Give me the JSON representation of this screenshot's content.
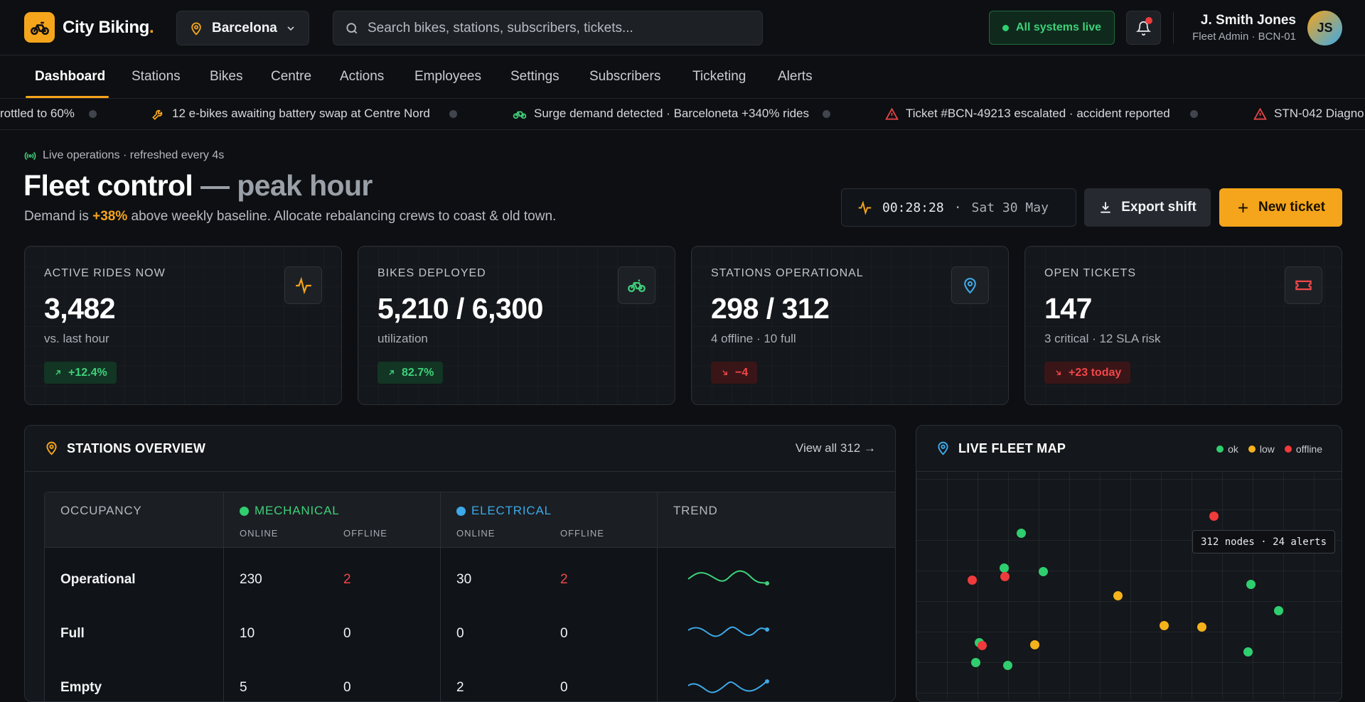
{
  "app": {
    "logo_text": "City Biking",
    "logo_dot": ".",
    "city": "Barcelona",
    "search_placeholder": "Search bikes, stations, subscribers, tickets...",
    "system_status": "All systems live",
    "user": {
      "name": "J. Smith Jones",
      "role": "Fleet Admin · BCN-01",
      "initials": "JS"
    }
  },
  "nav": {
    "tabs": [
      "Dashboard",
      "Stations",
      "Bikes",
      "Centre",
      "Actions",
      "Employees",
      "Settings",
      "Subscribers",
      "Ticketing",
      "Alerts"
    ],
    "active": "Dashboard"
  },
  "ticker": [
    {
      "icon": "none",
      "text": "rottled to 60%"
    },
    {
      "icon": "wrench-icon",
      "text": "12 e-bikes awaiting battery swap at Centre Nord"
    },
    {
      "icon": "bike-icon",
      "text": "Surge demand detected · Barceloneta +340% rides"
    },
    {
      "icon": "warning-icon",
      "text": "Ticket #BCN-49213 escalated · accident reported"
    },
    {
      "icon": "warning-icon",
      "text": "STN-042 Diagno"
    }
  ],
  "header": {
    "live_label": "Live operations · refreshed every 4s",
    "title": "Fleet control",
    "title_muted": "— peak hour",
    "subtitle_pre": "Demand is ",
    "subtitle_highlight": "+38%",
    "subtitle_post": " above weekly baseline. Allocate rebalancing crews to coast & old town.",
    "clock_time": "00:28:28",
    "clock_sep": "·",
    "clock_date": "Sat 30 May",
    "export_label": "Export shift",
    "new_ticket_label": "New ticket"
  },
  "kpis": [
    {
      "label": "ACTIVE RIDES NOW",
      "value": "3,482",
      "sub": "vs. last hour",
      "chip": "+12.4%",
      "trend": "up",
      "icon": "pulse-icon",
      "color": "#f5a51b"
    },
    {
      "label": "BIKES DEPLOYED",
      "value": "5,210 / 6,300",
      "sub": "utilization",
      "chip": "82.7%",
      "trend": "up",
      "icon": "bike-icon",
      "color": "#3ed17a"
    },
    {
      "label": "STATIONS OPERATIONAL",
      "value": "298 / 312",
      "sub": "4 offline · 10 full",
      "chip": "−4",
      "trend": "down",
      "icon": "map-pin-icon",
      "color": "#3da9e8"
    },
    {
      "label": "OPEN TICKETS",
      "value": "147",
      "sub": "3 critical · 12 SLA risk",
      "chip": "+23 today",
      "trend": "down",
      "icon": "ticket-icon",
      "color": "#f0474a"
    }
  ],
  "stations": {
    "title": "STATIONS OVERVIEW",
    "view_all": "View all 312 →",
    "columns": {
      "occupancy": "OCCUPANCY",
      "mechanical": "MECHANICAL",
      "electrical": "ELECTRICAL",
      "trend": "TREND",
      "online": "ONLINE",
      "offline": "OFFLINE"
    },
    "rows": [
      {
        "label": "Operational",
        "mech_online": "230",
        "mech_offline": "2",
        "elec_online": "30",
        "elec_offline": "2",
        "trend_color": "#3ed17a"
      },
      {
        "label": "Full",
        "mech_online": "10",
        "mech_offline": "0",
        "elec_online": "0",
        "elec_offline": "0",
        "trend_color": "#3da9e8"
      },
      {
        "label": "Empty",
        "mech_online": "5",
        "mech_offline": "0",
        "elec_online": "2",
        "elec_offline": "0",
        "trend_color": "#3da9e8"
      }
    ]
  },
  "map": {
    "title": "LIVE FLEET MAP",
    "legend": [
      {
        "label": "ok",
        "color": "#2fce6f"
      },
      {
        "label": "low",
        "color": "#f5b21b"
      },
      {
        "label": "offline",
        "color": "#ef3b3b"
      }
    ],
    "tooltip": "312 nodes · 24 alerts"
  }
}
